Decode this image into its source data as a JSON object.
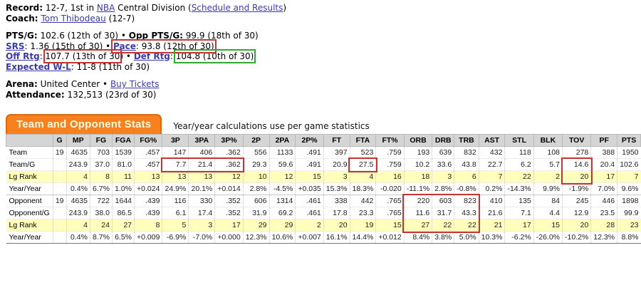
{
  "colors": {
    "annotation_red": "#c43434",
    "annotation_green": "#2eab2e",
    "tab_orange": "#f8801e",
    "rank_row_yellow": "#ffffbb",
    "good_green": "#3f8f3f",
    "bad_red": "#cc6666",
    "link_blue": "#3b3ba6"
  },
  "info_lines": [
    {
      "name": "record-line",
      "gap": false,
      "segments": [
        {
          "text": "Record:",
          "bold": true
        },
        {
          "text": " 12-7, 1st in "
        },
        {
          "text": "NBA",
          "link": true
        },
        {
          "text": " Central Division ("
        },
        {
          "text": "Schedule and Results",
          "link": true
        },
        {
          "text": ")"
        }
      ]
    },
    {
      "name": "coach-line",
      "gap": false,
      "segments": [
        {
          "text": "Coach:",
          "bold": true
        },
        {
          "text": " "
        },
        {
          "text": "Tom Thibodeau",
          "link": true
        },
        {
          "text": " (12-7)"
        }
      ]
    },
    {
      "name": "ptsg-line",
      "gap": true,
      "segments": [
        {
          "text": "PTS/G:",
          "bold": true
        },
        {
          "text": " 102.6 (12th of 30) • "
        },
        {
          "text": "Opp PTS/G:",
          "bold": true
        },
        {
          "text": " 99.9 (18th of 30)"
        }
      ]
    },
    {
      "name": "srs-pace-line",
      "gap": false,
      "segments": [
        {
          "text": "SRS",
          "bold": true,
          "link": true
        },
        {
          "text": ": 1.36 (15th of 30) • "
        },
        {
          "text": "Pace",
          "bold": true,
          "link": true,
          "box": "red"
        },
        {
          "text": ": 93.8 (12th of 30)",
          "box": "red"
        }
      ]
    },
    {
      "name": "ratings-line",
      "gap": false,
      "segments": [
        {
          "text": "Off Rtg",
          "bold": true,
          "link": true
        },
        {
          "text": ": "
        },
        {
          "text": "107.7 (13th of 30",
          "box": "red"
        },
        {
          "text": ") • "
        },
        {
          "text": "Def Rtg",
          "bold": true,
          "link": true
        },
        {
          "text": ": "
        },
        {
          "text": "104.8 (10th of 30)",
          "box": "green"
        }
      ]
    },
    {
      "name": "expected-wl-line",
      "gap": false,
      "segments": [
        {
          "text": "Expected W-L",
          "bold": true,
          "link": true
        },
        {
          "text": ": 11-8 (11th of 30)"
        }
      ]
    },
    {
      "name": "arena-line",
      "gap": true,
      "segments": [
        {
          "text": "Arena:",
          "bold": true
        },
        {
          "text": " United Center • "
        },
        {
          "text": "Buy Tickets",
          "link": true
        }
      ]
    },
    {
      "name": "attendance-line",
      "gap": false,
      "segments": [
        {
          "text": "Attendance:",
          "bold": true
        },
        {
          "text": " 132,513 (23rd of 30)"
        }
      ]
    }
  ],
  "stats": {
    "tab_title": "Team and Opponent Stats",
    "caption": "Year/year calculations use per game statistics"
  },
  "table": {
    "columns": [
      "",
      "G",
      "MP",
      "FG",
      "FGA",
      "FG%",
      "3P",
      "3PA",
      "3P%",
      "2P",
      "2PA",
      "2P%",
      "FT",
      "FTA",
      "FT%",
      "ORB",
      "DRB",
      "TRB",
      "AST",
      "STL",
      "BLK",
      "TOV",
      "PF",
      "PTS"
    ],
    "rows": [
      {
        "label": "Team",
        "style": "plain",
        "cells": [
          "19",
          "4635",
          "703",
          "1539",
          ".457",
          "147",
          "406",
          ".362",
          "556",
          "1133",
          ".491",
          "397",
          "523",
          ".759",
          "193",
          "639",
          "832",
          "432",
          "118",
          "108",
          "278",
          "388",
          "1950"
        ]
      },
      {
        "label": "Team/G",
        "style": "plain",
        "cells": [
          "",
          "243.9",
          "37.0",
          "81.0",
          ".457",
          "7.7",
          "21.4",
          ".362",
          "29.3",
          "59.6",
          ".491",
          "20.9",
          "27.5",
          ".759",
          "10.2",
          "33.6",
          "43.8",
          "22.7",
          "6.2",
          "5.7",
          "14.6",
          "20.4",
          "102.6"
        ]
      },
      {
        "label": "Lg Rank",
        "style": "rank",
        "cells": [
          "",
          "4",
          "8",
          "11",
          "13",
          "13",
          "13",
          "12",
          "10",
          "12",
          "15",
          "3",
          "4",
          "16",
          "18",
          "3",
          "6",
          "7",
          "22",
          "2",
          "20",
          "17",
          "7"
        ]
      },
      {
        "label": "Year/Year",
        "style": "yy",
        "cells": [
          "",
          "0.4%",
          "6.7%",
          "1.0%",
          "+0.024",
          "24.9%",
          "20.1%",
          "+0.014",
          "2.8%",
          "-4.5%",
          "+0.035",
          "15.3%",
          "18.3%",
          "-0.020",
          "-11.1%",
          "2.8%",
          "-0.8%",
          "0.2%",
          "-14.3%",
          "9.9%",
          "-1.9%",
          "7.0%",
          "9.6%"
        ],
        "colors": [
          "",
          "g",
          "g",
          "g",
          "g",
          "g",
          "g",
          "g",
          "g",
          "r",
          "g",
          "g",
          "g",
          "r",
          "r",
          "g",
          "r",
          "g",
          "r",
          "g",
          "g",
          "r",
          "g"
        ]
      },
      {
        "label": "Opponent",
        "style": "plain",
        "group_start": true,
        "cells": [
          "19",
          "4635",
          "722",
          "1644",
          ".439",
          "116",
          "330",
          ".352",
          "606",
          "1314",
          ".461",
          "338",
          "442",
          ".765",
          "220",
          "603",
          "823",
          "410",
          "135",
          "84",
          "245",
          "446",
          "1898"
        ]
      },
      {
        "label": "Opponent/G",
        "style": "plain",
        "cells": [
          "",
          "243.9",
          "38.0",
          "86.5",
          ".439",
          "6.1",
          "17.4",
          ".352",
          "31.9",
          "69.2",
          ".461",
          "17.8",
          "23.3",
          ".765",
          "11.6",
          "31.7",
          "43.3",
          "21.6",
          "7.1",
          "4.4",
          "12.9",
          "23.5",
          "99.9"
        ]
      },
      {
        "label": "Lg Rank",
        "style": "rank",
        "cells": [
          "",
          "4",
          "24",
          "27",
          "8",
          "5",
          "3",
          "17",
          "29",
          "29",
          "2",
          "20",
          "19",
          "15",
          "27",
          "22",
          "22",
          "21",
          "17",
          "15",
          "20",
          "28",
          "23"
        ]
      },
      {
        "label": "Year/Year",
        "style": "yy",
        "cells": [
          "",
          "0.4%",
          "8.7%",
          "6.5%",
          "+0.009",
          "-6.9%",
          "-7.0%",
          "+0.000",
          "12.3%",
          "10.6%",
          "+0.007",
          "16.1%",
          "14.4%",
          "+0.012",
          "8.4%",
          "3.8%",
          "5.0%",
          "10.3%",
          "-6.2%",
          "-26.0%",
          "-10.2%",
          "12.3%",
          "8.8%"
        ],
        "colors": [
          "",
          "g",
          "r",
          "r",
          "r",
          "g",
          "g",
          "r",
          "r",
          "r",
          "r",
          "r",
          "r",
          "r",
          "r",
          "r",
          "r",
          "r",
          "g",
          "g",
          "r",
          "g",
          "r"
        ]
      }
    ],
    "annotations": [
      {
        "row_start": 1,
        "row_end": 1,
        "col_start": 6,
        "col_end": 8,
        "color": "red"
      },
      {
        "row_start": 1,
        "row_end": 1,
        "col_start": 13,
        "col_end": 13,
        "color": "red"
      },
      {
        "row_start": 1,
        "row_end": 2,
        "col_start": 21,
        "col_end": 21,
        "color": "red"
      },
      {
        "row_start": 4,
        "row_end": 6,
        "col_start": 15,
        "col_end": 17,
        "color": "red"
      }
    ]
  }
}
